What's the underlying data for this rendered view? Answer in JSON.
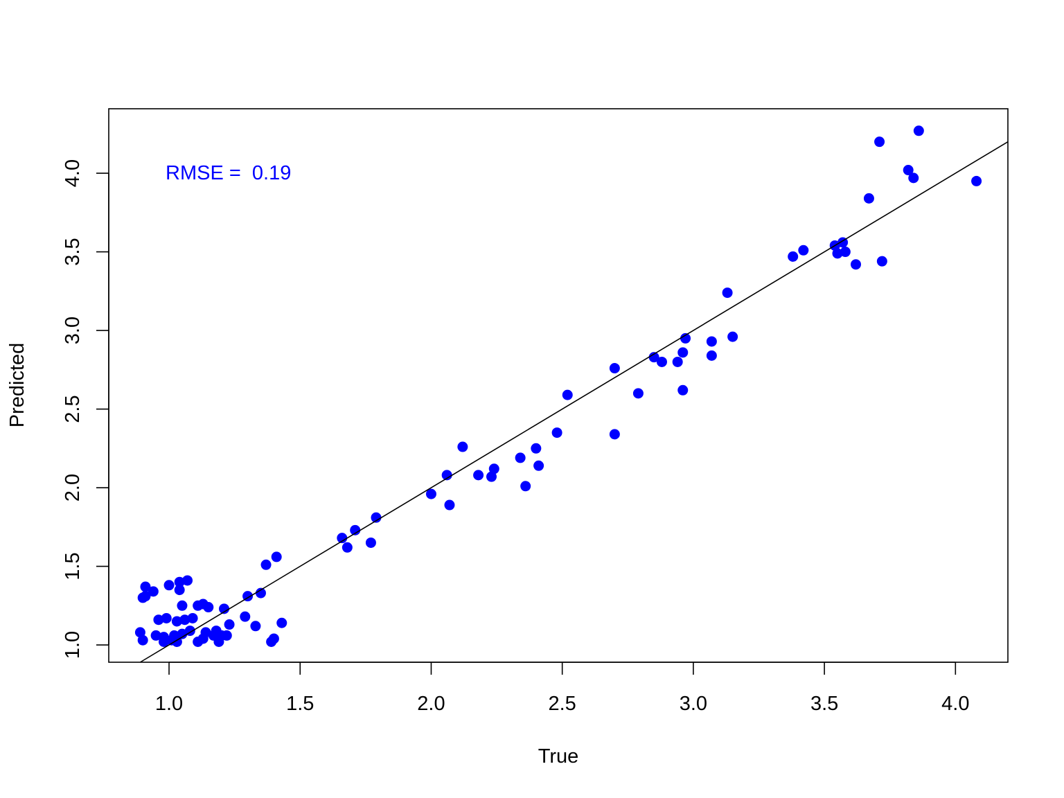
{
  "chart_data": {
    "type": "scatter",
    "xlabel": "True",
    "ylabel": "Predicted",
    "xlim": [
      0.77,
      4.2
    ],
    "ylim": [
      0.89,
      4.41
    ],
    "x_ticks": [
      1.0,
      1.5,
      2.0,
      2.5,
      3.0,
      3.5,
      4.0
    ],
    "x_tick_labels": [
      "1.0",
      "1.5",
      "2.0",
      "2.5",
      "3.0",
      "3.5",
      "4.0"
    ],
    "y_ticks": [
      1.0,
      1.5,
      2.0,
      2.5,
      3.0,
      3.5,
      4.0
    ],
    "y_tick_labels": [
      "1.0",
      "1.5",
      "2.0",
      "2.5",
      "3.0",
      "3.5",
      "4.0"
    ],
    "grid": false,
    "annotation": "RMSE =  0.19",
    "point_color": "#0000ff",
    "line_color": "#000000",
    "reference_line": {
      "intercept": 0,
      "slope": 1
    },
    "points": [
      {
        "x": 0.89,
        "y": 1.08
      },
      {
        "x": 0.9,
        "y": 1.03
      },
      {
        "x": 0.9,
        "y": 1.3
      },
      {
        "x": 0.91,
        "y": 1.31
      },
      {
        "x": 0.91,
        "y": 1.37
      },
      {
        "x": 0.94,
        "y": 1.34
      },
      {
        "x": 0.95,
        "y": 1.06
      },
      {
        "x": 0.96,
        "y": 1.16
      },
      {
        "x": 0.98,
        "y": 1.02
      },
      {
        "x": 0.98,
        "y": 1.05
      },
      {
        "x": 0.99,
        "y": 1.17
      },
      {
        "x": 1.0,
        "y": 1.38
      },
      {
        "x": 1.01,
        "y": 1.03
      },
      {
        "x": 1.02,
        "y": 1.06
      },
      {
        "x": 1.03,
        "y": 1.02
      },
      {
        "x": 1.03,
        "y": 1.15
      },
      {
        "x": 1.04,
        "y": 1.4
      },
      {
        "x": 1.04,
        "y": 1.35
      },
      {
        "x": 1.05,
        "y": 1.25
      },
      {
        "x": 1.05,
        "y": 1.07
      },
      {
        "x": 1.06,
        "y": 1.16
      },
      {
        "x": 1.07,
        "y": 1.41
      },
      {
        "x": 1.08,
        "y": 1.09
      },
      {
        "x": 1.09,
        "y": 1.17
      },
      {
        "x": 1.11,
        "y": 1.02
      },
      {
        "x": 1.11,
        "y": 1.25
      },
      {
        "x": 1.13,
        "y": 1.26
      },
      {
        "x": 1.13,
        "y": 1.04
      },
      {
        "x": 1.14,
        "y": 1.08
      },
      {
        "x": 1.15,
        "y": 1.24
      },
      {
        "x": 1.17,
        "y": 1.06
      },
      {
        "x": 1.18,
        "y": 1.09
      },
      {
        "x": 1.19,
        "y": 1.02
      },
      {
        "x": 1.2,
        "y": 1.06
      },
      {
        "x": 1.21,
        "y": 1.23
      },
      {
        "x": 1.22,
        "y": 1.06
      },
      {
        "x": 1.23,
        "y": 1.13
      },
      {
        "x": 1.29,
        "y": 1.18
      },
      {
        "x": 1.3,
        "y": 1.31
      },
      {
        "x": 1.33,
        "y": 1.12
      },
      {
        "x": 1.35,
        "y": 1.33
      },
      {
        "x": 1.37,
        "y": 1.51
      },
      {
        "x": 1.39,
        "y": 1.02
      },
      {
        "x": 1.4,
        "y": 1.04
      },
      {
        "x": 1.41,
        "y": 1.56
      },
      {
        "x": 1.43,
        "y": 1.14
      },
      {
        "x": 1.66,
        "y": 1.68
      },
      {
        "x": 1.68,
        "y": 1.62
      },
      {
        "x": 1.71,
        "y": 1.73
      },
      {
        "x": 1.77,
        "y": 1.65
      },
      {
        "x": 1.79,
        "y": 1.81
      },
      {
        "x": 2.0,
        "y": 1.96
      },
      {
        "x": 2.06,
        "y": 2.08
      },
      {
        "x": 2.07,
        "y": 1.89
      },
      {
        "x": 2.12,
        "y": 2.26
      },
      {
        "x": 2.18,
        "y": 2.08
      },
      {
        "x": 2.23,
        "y": 2.07
      },
      {
        "x": 2.24,
        "y": 2.12
      },
      {
        "x": 2.34,
        "y": 2.19
      },
      {
        "x": 2.36,
        "y": 2.01
      },
      {
        "x": 2.4,
        "y": 2.25
      },
      {
        "x": 2.41,
        "y": 2.14
      },
      {
        "x": 2.48,
        "y": 2.35
      },
      {
        "x": 2.52,
        "y": 2.59
      },
      {
        "x": 2.7,
        "y": 2.76
      },
      {
        "x": 2.7,
        "y": 2.34
      },
      {
        "x": 2.79,
        "y": 2.6
      },
      {
        "x": 2.85,
        "y": 2.83
      },
      {
        "x": 2.88,
        "y": 2.8
      },
      {
        "x": 2.94,
        "y": 2.8
      },
      {
        "x": 2.96,
        "y": 2.86
      },
      {
        "x": 2.96,
        "y": 2.62
      },
      {
        "x": 2.97,
        "y": 2.95
      },
      {
        "x": 3.07,
        "y": 2.93
      },
      {
        "x": 3.07,
        "y": 2.84
      },
      {
        "x": 3.13,
        "y": 3.24
      },
      {
        "x": 3.15,
        "y": 2.96
      },
      {
        "x": 3.38,
        "y": 3.47
      },
      {
        "x": 3.42,
        "y": 3.51
      },
      {
        "x": 3.54,
        "y": 3.54
      },
      {
        "x": 3.55,
        "y": 3.49
      },
      {
        "x": 3.57,
        "y": 3.56
      },
      {
        "x": 3.58,
        "y": 3.5
      },
      {
        "x": 3.62,
        "y": 3.42
      },
      {
        "x": 3.67,
        "y": 3.84
      },
      {
        "x": 3.71,
        "y": 4.2
      },
      {
        "x": 3.72,
        "y": 3.44
      },
      {
        "x": 3.82,
        "y": 4.02
      },
      {
        "x": 3.84,
        "y": 3.97
      },
      {
        "x": 3.86,
        "y": 4.27
      },
      {
        "x": 4.08,
        "y": 3.95
      }
    ]
  }
}
